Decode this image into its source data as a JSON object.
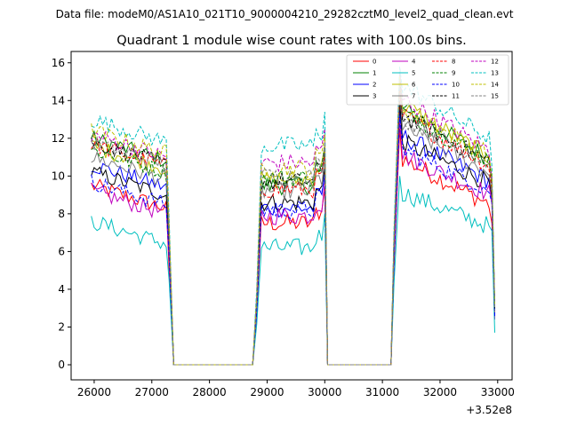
{
  "suptitle": "Data file: modeM0/AS1A10_021T10_9000004210_29282cztM0_level2_quad_clean.evt",
  "chart_data": {
    "type": "line",
    "title": "Quadrant 1 module wise count rates with 100.0s bins.",
    "xlabel": "",
    "ylabel": "",
    "offset_label": "+3.52e8",
    "xlim": [
      25600,
      33250
    ],
    "ylim": [
      -0.8,
      16.6
    ],
    "x_ticks": [
      26000,
      27000,
      28000,
      29000,
      30000,
      31000,
      32000,
      33000
    ],
    "x_tick_labels": [
      "26000",
      "27000",
      "28000",
      "29000",
      "30000",
      "31000",
      "32000",
      "33000"
    ],
    "y_ticks": [
      0,
      2,
      4,
      6,
      8,
      10,
      12,
      14,
      16
    ],
    "y_tick_labels": [
      "0",
      "2",
      "4",
      "6",
      "8",
      "10",
      "12",
      "14",
      "16"
    ],
    "legend_location": "upper right",
    "segments": [
      {
        "start": 25950,
        "end": 27250,
        "rising": 0.0,
        "drop": [
          27340,
          27380
        ]
      },
      {
        "start": 28850,
        "end": 29950,
        "rising": 28750,
        "drop": [
          30010,
          30050
        ]
      },
      {
        "start": 31250,
        "end": 32850,
        "rising": 31150,
        "drop": [
          32910,
          32950
        ]
      }
    ],
    "series": [
      {
        "name": "0",
        "color": "#ff0000",
        "dash": "",
        "levels": [
          8.7,
          7.5,
          10.3
        ],
        "peak": 12.5,
        "end": [
          5.0,
          5.0,
          2.5
        ]
      },
      {
        "name": "1",
        "color": "#008000",
        "dash": "",
        "levels": [
          11.2,
          9.5,
          13.0
        ],
        "peak": 15.2,
        "end": [
          7.0,
          7.2,
          3.0
        ]
      },
      {
        "name": "2",
        "color": "#0000ff",
        "dash": "",
        "levels": [
          9.8,
          8.3,
          11.5
        ],
        "peak": 13.5,
        "end": [
          6.0,
          6.3,
          2.6
        ]
      },
      {
        "name": "3",
        "color": "#000000",
        "dash": "",
        "levels": [
          9.4,
          8.6,
          11.2
        ],
        "peak": 14.0,
        "end": [
          6.2,
          6.4,
          2.7
        ]
      },
      {
        "name": "4",
        "color": "#bf00bf",
        "dash": "",
        "levels": [
          8.4,
          7.9,
          10.5
        ],
        "peak": 13.0,
        "end": [
          5.6,
          6.0,
          2.4
        ]
      },
      {
        "name": "5",
        "color": "#00bfbf",
        "dash": "",
        "levels": [
          6.8,
          6.2,
          8.5
        ],
        "peak": 10.0,
        "end": [
          4.5,
          4.6,
          1.7
        ]
      },
      {
        "name": "6",
        "color": "#bfbf00",
        "dash": "",
        "levels": [
          10.8,
          9.8,
          13.2
        ],
        "peak": 15.0,
        "end": [
          7.0,
          7.0,
          2.9
        ]
      },
      {
        "name": "7",
        "color": "#808080",
        "dash": "",
        "levels": [
          10.2,
          9.2,
          12.0
        ],
        "peak": 14.8,
        "end": [
          6.6,
          6.6,
          2.8
        ]
      },
      {
        "name": "8",
        "color": "#ff0000",
        "dash": "4,2",
        "levels": [
          10.9,
          9.3,
          12.6
        ],
        "peak": 14.5,
        "end": [
          6.6,
          6.8,
          2.8
        ]
      },
      {
        "name": "9",
        "color": "#008000",
        "dash": "4,2",
        "levels": [
          10.6,
          9.9,
          12.8
        ],
        "peak": 15.0,
        "end": [
          6.7,
          7.0,
          2.9
        ]
      },
      {
        "name": "10",
        "color": "#0000ff",
        "dash": "4,2",
        "levels": [
          8.9,
          8.2,
          10.8
        ],
        "peak": 13.2,
        "end": [
          5.8,
          6.1,
          2.5
        ]
      },
      {
        "name": "11",
        "color": "#000000",
        "dash": "4,2",
        "levels": [
          11.0,
          9.7,
          12.6
        ],
        "peak": 15.4,
        "end": [
          7.0,
          7.2,
          3.0
        ]
      },
      {
        "name": "12",
        "color": "#bf00bf",
        "dash": "4,2",
        "levels": [
          11.4,
          10.7,
          13.5
        ],
        "peak": 15.5,
        "end": [
          7.3,
          7.4,
          3.1
        ]
      },
      {
        "name": "13",
        "color": "#00bfbf",
        "dash": "4,2",
        "levels": [
          12.2,
          11.6,
          14.2
        ],
        "peak": 15.8,
        "end": [
          7.8,
          8.0,
          3.2
        ]
      },
      {
        "name": "14",
        "color": "#bfbf00",
        "dash": "4,2",
        "levels": [
          11.6,
          10.4,
          13.0
        ],
        "peak": 15.3,
        "end": [
          7.4,
          7.5,
          3.1
        ]
      },
      {
        "name": "15",
        "color": "#808080",
        "dash": "4,2",
        "levels": [
          11.0,
          10.0,
          12.5
        ],
        "peak": 14.9,
        "end": [
          7.0,
          7.2,
          2.9
        ]
      }
    ]
  }
}
